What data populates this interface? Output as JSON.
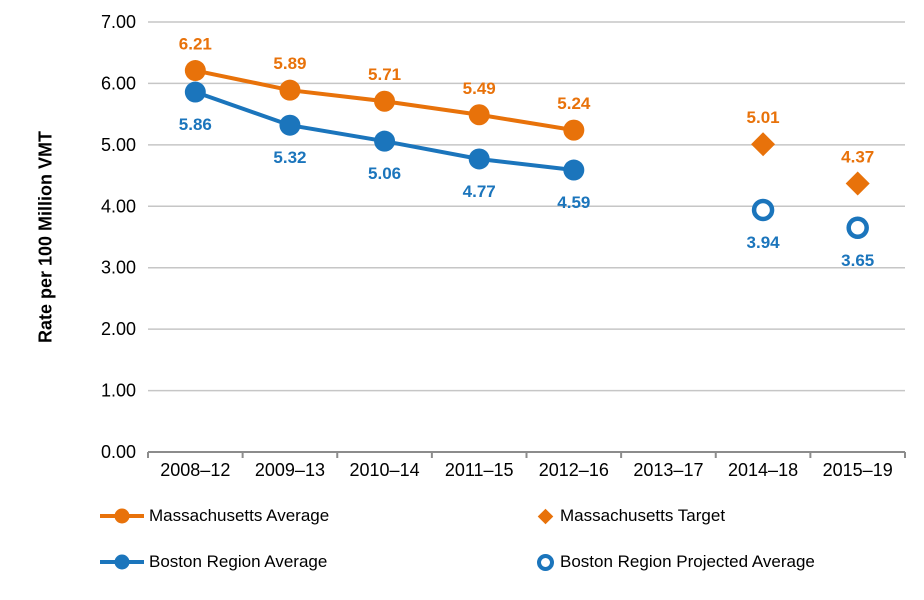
{
  "chart_data": {
    "type": "line",
    "title": "",
    "xlabel": "",
    "ylabel": "Rate per 100 Million VMT",
    "categories": [
      "2008–12",
      "2009–13",
      "2010–14",
      "2011–15",
      "2012–16",
      "2013–17",
      "2014–18",
      "2015–19"
    ],
    "ylim": [
      0,
      7
    ],
    "ytick_step": 1,
    "ytick_labels": [
      "0.00",
      "1.00",
      "2.00",
      "3.00",
      "4.00",
      "5.00",
      "6.00",
      "7.00"
    ],
    "grid": "horizontal",
    "legend_position": "bottom",
    "series": [
      {
        "name": "Massachusetts Average",
        "type": "line",
        "marker": "circle",
        "color": "#E8720A",
        "x_indices": [
          0,
          1,
          2,
          3,
          4
        ],
        "values": [
          6.21,
          5.89,
          5.71,
          5.49,
          5.24
        ],
        "labels": [
          "6.21",
          "5.89",
          "5.71",
          "5.49",
          "5.24"
        ],
        "label_position": "above"
      },
      {
        "name": "Boston Region Average",
        "type": "line",
        "marker": "circle",
        "color": "#1B75BC",
        "x_indices": [
          0,
          1,
          2,
          3,
          4
        ],
        "values": [
          5.86,
          5.32,
          5.06,
          4.77,
          4.59
        ],
        "labels": [
          "5.86",
          "5.32",
          "5.06",
          "4.77",
          "4.59"
        ],
        "label_position": "below"
      },
      {
        "name": "Massachusetts Target",
        "type": "scatter",
        "marker": "diamond",
        "color": "#E8720A",
        "x_indices": [
          6,
          7
        ],
        "values": [
          5.01,
          4.37
        ],
        "labels": [
          "5.01",
          "4.37"
        ],
        "label_position": "above"
      },
      {
        "name": "Boston Region Projected Average",
        "type": "scatter",
        "marker": "open-circle",
        "color": "#1B75BC",
        "x_indices": [
          6,
          7
        ],
        "values": [
          3.94,
          3.65
        ],
        "labels": [
          "3.94",
          "3.65"
        ],
        "label_position": "below"
      }
    ],
    "colors": {
      "grid": "#C6C6C6",
      "axis": "#8C8C8C",
      "text": "#000000",
      "background": "#FFFFFF"
    }
  }
}
